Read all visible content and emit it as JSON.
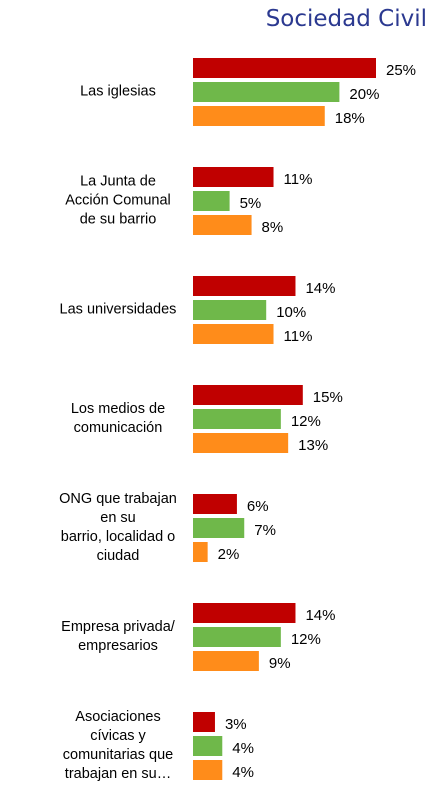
{
  "chart_data": {
    "type": "hbar",
    "title": "Sociedad Civil",
    "categories": [
      "Las iglesias",
      "La Junta de\nAcción Comunal\nde su barrio",
      "Las universidades",
      "Los medios de\ncomunicación",
      "ONG que trabajan\nen su\nbarrio, localidad o\nciudad",
      "Empresa privada/\nempresarios",
      "Asociaciones\ncívicas y\ncomunitarias que\ntrabajan en su…"
    ],
    "xlim": [
      0,
      25
    ],
    "series": [
      {
        "color": "#c00000",
        "values": [
          25,
          11,
          14,
          15,
          6,
          14,
          3
        ],
        "value_labels": [
          "25%",
          "11%",
          "14%",
          "15%",
          "6%",
          "14%",
          "3%"
        ]
      },
      {
        "color": "#6fb84a",
        "values": [
          20,
          5,
          10,
          12,
          7,
          12,
          4
        ],
        "value_labels": [
          "20%",
          "5%",
          "10%",
          "12%",
          "7%",
          "12%",
          "4%"
        ]
      },
      {
        "color": "#ff8c1a",
        "values": [
          18,
          8,
          11,
          13,
          2,
          9,
          4
        ],
        "value_labels": [
          "18%",
          "8%",
          "11%",
          "13%",
          "2%",
          "9%",
          "4%"
        ]
      }
    ]
  }
}
